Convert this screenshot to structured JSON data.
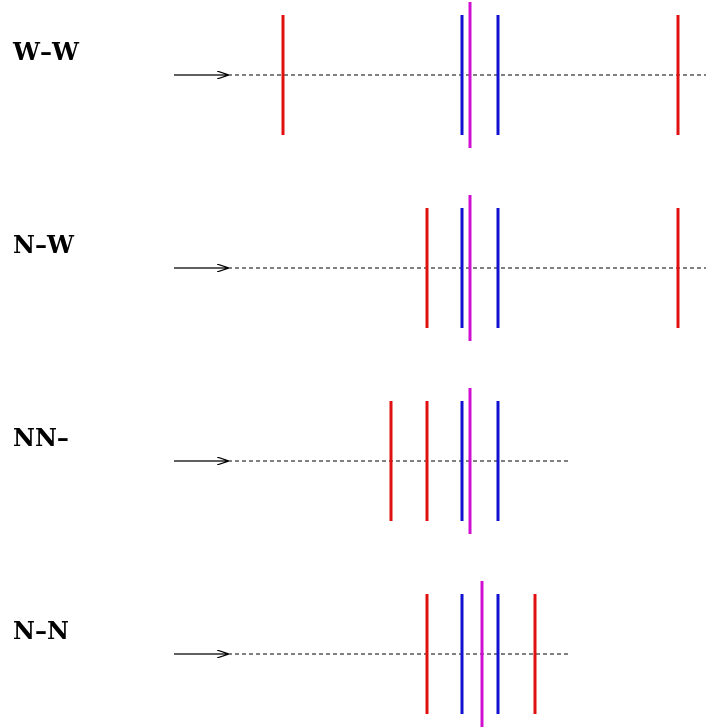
{
  "colors": {
    "red": "#e01010",
    "blue": "#1010d0",
    "magenta": "#d010d0",
    "axis": "#000000"
  },
  "rows": [
    {
      "label": "W–W",
      "red_lines": [
        283,
        678
      ],
      "blue_lines": [
        462,
        498
      ],
      "magenta_line": 470
    },
    {
      "label": "N–W",
      "red_lines": [
        427,
        678
      ],
      "blue_lines": [
        462,
        498
      ],
      "magenta_line": 470
    },
    {
      "label": "NN–",
      "red_lines": [
        391,
        427
      ],
      "blue_lines": [
        462,
        498
      ],
      "magenta_line": 470
    },
    {
      "label": "N–N",
      "red_lines": [
        427,
        535
      ],
      "blue_lines": [
        462,
        498
      ],
      "magenta_line": 482
    }
  ]
}
